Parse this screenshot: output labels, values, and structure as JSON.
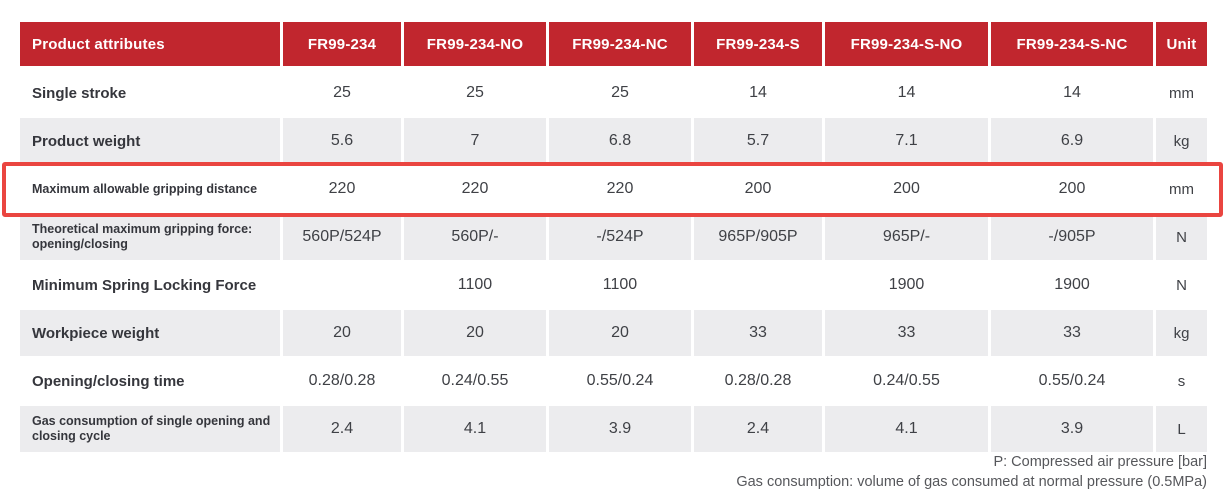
{
  "table": {
    "columns": [
      "Product attributes",
      "FR99-234",
      "FR99-234-NO",
      "FR99-234-NC",
      "FR99-234-S",
      "FR99-234-S-NO",
      "FR99-234-S-NC",
      "Unit"
    ],
    "rows": [
      {
        "label": "Single stroke",
        "small": false,
        "highlighted": false,
        "values": [
          "25",
          "25",
          "25",
          "14",
          "14",
          "14"
        ],
        "unit": "mm"
      },
      {
        "label": "Product weight",
        "small": false,
        "highlighted": false,
        "values": [
          "5.6",
          "7",
          "6.8",
          "5.7",
          "7.1",
          "6.9"
        ],
        "unit": "kg"
      },
      {
        "label": "Maximum allowable gripping distance",
        "small": true,
        "highlighted": true,
        "values": [
          "220",
          "220",
          "220",
          "200",
          "200",
          "200"
        ],
        "unit": "mm"
      },
      {
        "label": "Theoretical maximum gripping force: opening/closing",
        "small": true,
        "highlighted": false,
        "values": [
          "560P/524P",
          "560P/-",
          "-/524P",
          "965P/905P",
          "965P/-",
          "-/905P"
        ],
        "unit": "N"
      },
      {
        "label": "Minimum Spring Locking Force",
        "small": false,
        "highlighted": false,
        "values": [
          "",
          "1100",
          "1100",
          "",
          "1900",
          "1900"
        ],
        "unit": "N"
      },
      {
        "label": "Workpiece weight",
        "small": false,
        "highlighted": false,
        "values": [
          "20",
          "20",
          "20",
          "33",
          "33",
          "33"
        ],
        "unit": "kg"
      },
      {
        "label": "Opening/closing time",
        "small": false,
        "highlighted": false,
        "values": [
          "0.28/0.28",
          "0.24/0.55",
          "0.55/0.24",
          "0.28/0.28",
          "0.24/0.55",
          "0.55/0.24"
        ],
        "unit": "s"
      },
      {
        "label": "Gas consumption of single opening and closing cycle",
        "small": true,
        "highlighted": false,
        "values": [
          "2.4",
          "4.1",
          "3.9",
          "2.4",
          "4.1",
          "3.9"
        ],
        "unit": "L"
      }
    ]
  },
  "footnotes": [
    "P: Compressed air pressure [bar]",
    "Gas consumption: volume of gas consumed at normal pressure (0.5MPa)"
  ],
  "colors": {
    "header_bg": "#c1262e",
    "row_alt_bg": "#ececee",
    "highlight_border": "#ea4540",
    "label_text": "#35363c",
    "value_text": "#3f4146",
    "footnote_text": "#56575b"
  }
}
